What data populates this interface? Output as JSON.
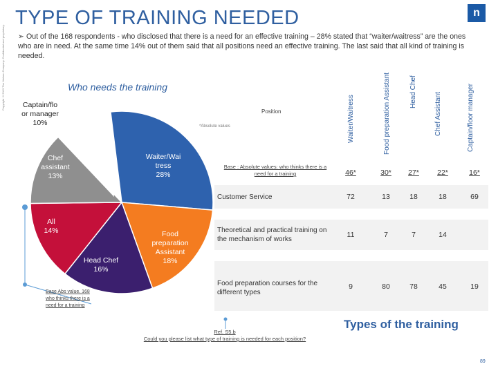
{
  "side_copy": "Copyright ©2013 The Nielsen Company. Confidential and proprietary.",
  "title": "TYPE OF TRAINING NEEDED",
  "logo": "n",
  "bullet": "Out of the 168 respondents - who disclosed that there is a need for an effective training – 28% stated that “waiter/waitress” are the ones who are in need. At the same time 14% out of them said that all positions need an effective training. The last said that all kind of training is needed.",
  "pie": {
    "title": "Who needs the training",
    "position_label": "Position",
    "abs_note": "*Absolute values",
    "base_note": "Base Abs value. 168 who thinks there is a need for a training",
    "ref_note": "Ref. S5.b\nCould you please list what type of training is needed for each position?"
  },
  "chart_data": {
    "type": "pie",
    "title": "Who needs the training",
    "slices": [
      {
        "label": "Waiter/Waitress",
        "text_1": "Waiter/Wai",
        "text_2": "tress",
        "pct_text": "28%",
        "value": 28,
        "color": "#2e62ae"
      },
      {
        "label": "Food preparation Assistant",
        "text_1": "Food",
        "text_2": "preparation",
        "text_3": "Assistant",
        "pct_text": "18%",
        "value": 18,
        "color": "#f47c20"
      },
      {
        "label": "Head Chef",
        "text_1": "Head Chef",
        "pct_text": "16%",
        "value": 16,
        "color": "#3b1f6e"
      },
      {
        "label": "All",
        "text_1": "All",
        "pct_text": "14%",
        "value": 14,
        "color": "#c4103a"
      },
      {
        "label": "Chef assistant",
        "text_1": "Chef",
        "text_2": "assistant",
        "pct_text": "13%",
        "value": 13,
        "color": "#8f8f8f"
      },
      {
        "label": "Captain/floor manager",
        "text_1": "Captain/flo",
        "text_2": "or manager",
        "pct_text": "10%",
        "value": 10,
        "color": "#ffffff"
      }
    ]
  },
  "table": {
    "columns": [
      "Waiter/Waitress",
      "Food preparation Assistant",
      "Head Chef",
      "Chef Assistant",
      "Captain/floor manager"
    ],
    "base": {
      "label": "Base : Absolute values: who thinks there is a need for a training",
      "values": [
        "46*",
        "30*",
        "27*",
        "22*",
        "16*"
      ]
    },
    "rows": [
      {
        "label": "Customer Service",
        "values": [
          "72",
          "13",
          "18",
          "18",
          "69"
        ]
      },
      {
        "label": "Theoretical and practical training on the mechanism of works",
        "values": [
          "11",
          "7",
          "7",
          "14",
          ""
        ]
      },
      {
        "label": "Food preparation courses for the different types",
        "values": [
          "9",
          "80",
          "78",
          "45",
          "19"
        ]
      }
    ],
    "types_title": "Types of the training"
  },
  "colors": {
    "accent": "#2f5fa0",
    "row_bg": "#f2f2f2",
    "connector": "#5b9bd5"
  },
  "page_number": "89"
}
